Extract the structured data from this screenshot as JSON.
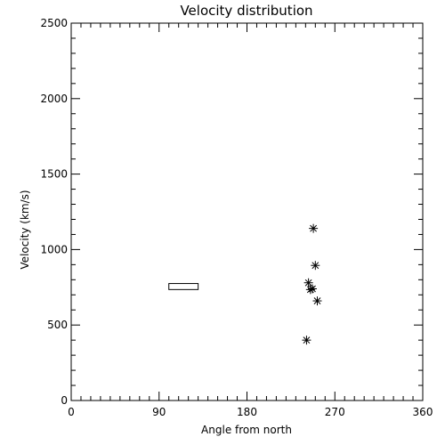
{
  "chart_data": {
    "type": "scatter",
    "title": "Velocity distribution",
    "xlabel": "Angle from north",
    "ylabel": "Velocity (km/s)",
    "xlim": [
      0,
      360
    ],
    "ylim": [
      0,
      2500
    ],
    "xticks": [
      0,
      90,
      180,
      270,
      360
    ],
    "xminor_step": 10,
    "yticks": [
      0,
      500,
      1000,
      1500,
      2000,
      2500
    ],
    "yminor_step": 100,
    "grid": false,
    "marker": "asterisk",
    "points": [
      {
        "x": 248,
        "y": 1140
      },
      {
        "x": 250,
        "y": 895
      },
      {
        "x": 243,
        "y": 780
      },
      {
        "x": 245,
        "y": 735
      },
      {
        "x": 247,
        "y": 740
      },
      {
        "x": 252,
        "y": 660
      },
      {
        "x": 241,
        "y": 400
      }
    ],
    "range_box": {
      "x": [
        100,
        130
      ],
      "y": [
        735,
        775
      ]
    }
  }
}
